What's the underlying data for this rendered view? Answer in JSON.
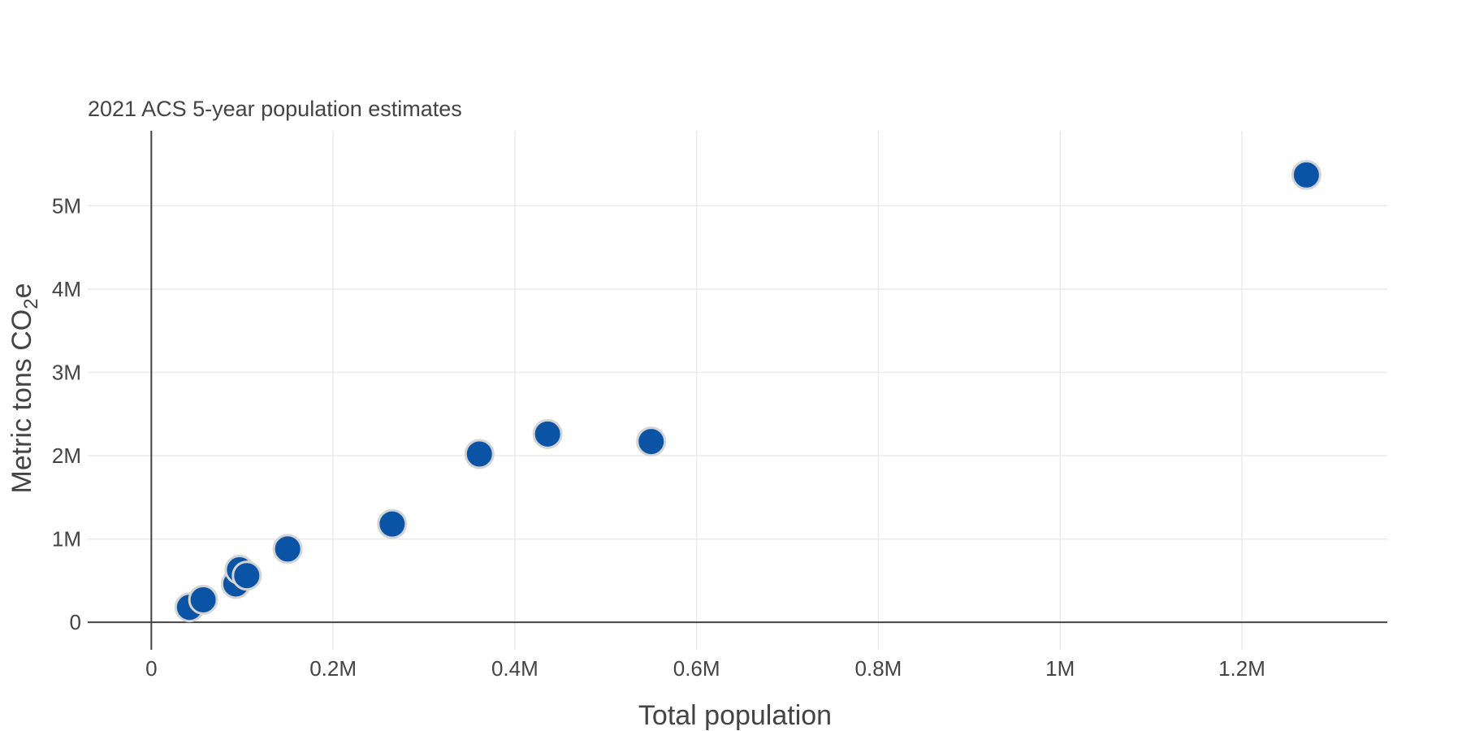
{
  "chart_data": {
    "type": "scatter",
    "subtitle": "2021 ACS 5-year population estimates",
    "xlabel": "Total population",
    "ylabel": {
      "main": "Metric tons CO",
      "sub": "2",
      "suffix": "e"
    },
    "xlim": [
      -70000,
      1360000
    ],
    "ylim": [
      -330000,
      5900000
    ],
    "x_ticks": [
      {
        "value": 0,
        "label": "0"
      },
      {
        "value": 200000,
        "label": "0.2M"
      },
      {
        "value": 400000,
        "label": "0.4M"
      },
      {
        "value": 600000,
        "label": "0.6M"
      },
      {
        "value": 800000,
        "label": "0.8M"
      },
      {
        "value": 1000000,
        "label": "1M"
      },
      {
        "value": 1200000,
        "label": "1.2M"
      }
    ],
    "y_ticks": [
      {
        "value": 0,
        "label": "0"
      },
      {
        "value": 1000000,
        "label": "1M"
      },
      {
        "value": 2000000,
        "label": "2M"
      },
      {
        "value": 3000000,
        "label": "3M"
      },
      {
        "value": 4000000,
        "label": "4M"
      },
      {
        "value": 5000000,
        "label": "5M"
      }
    ],
    "grid": true,
    "marker_color": "#0a53a5",
    "marker_outline": "#d4d4d4",
    "points": [
      {
        "x": 42000,
        "y": 180000
      },
      {
        "x": 57000,
        "y": 270000
      },
      {
        "x": 93000,
        "y": 460000
      },
      {
        "x": 97000,
        "y": 630000
      },
      {
        "x": 105000,
        "y": 560000
      },
      {
        "x": 150000,
        "y": 880000
      },
      {
        "x": 265000,
        "y": 1180000
      },
      {
        "x": 361000,
        "y": 2020000
      },
      {
        "x": 436000,
        "y": 2260000
      },
      {
        "x": 550000,
        "y": 2170000
      },
      {
        "x": 1271000,
        "y": 5370000
      }
    ]
  }
}
